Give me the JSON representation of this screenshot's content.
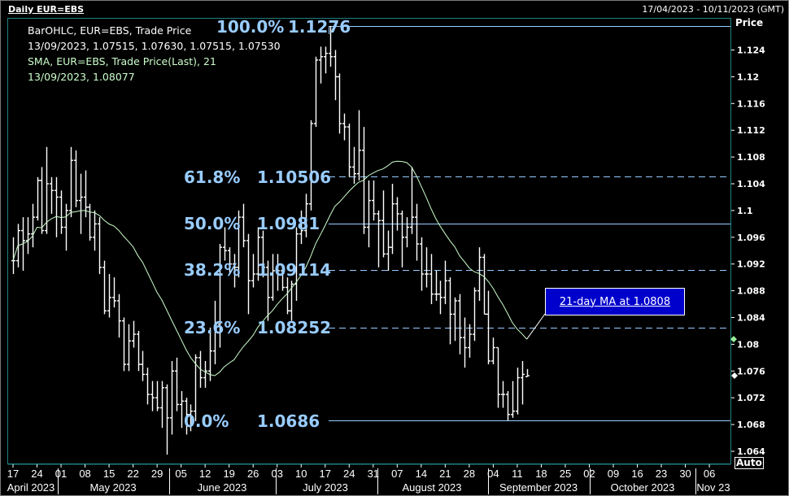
{
  "header": {
    "title": "Daily EUR=EBS",
    "date_range": "17/04/2023 - 10/11/2023 (GMT)"
  },
  "legend": {
    "line1": "BarOHLC, EUR=EBS, Trade Price",
    "line2": "13/09/2023, 1.07515, 1.07630, 1.07515, 1.07530",
    "line3": "SMA, EUR=EBS, Trade Price(Last),  21",
    "line4": "13/09/2023, 1.08077"
  },
  "axis": {
    "price_label": "Price",
    "auto_button": "Auto"
  },
  "callout": {
    "text": "21-day MA at 1.0808"
  },
  "colors": {
    "background": "#000000",
    "bars": "#ffffff",
    "sma": "#ccffcc",
    "fib": "#99ccff",
    "plot_border": "#1e8080",
    "callout": "#0000cc",
    "sma_marker": "#99ee99"
  },
  "chart_data": {
    "type": "ohlc",
    "title": "Daily EUR=EBS",
    "ylabel": "Price",
    "ylim": [
      1.062,
      1.129
    ],
    "grid": false,
    "sma_period": 21,
    "sma_last": 1.08077,
    "y_ticks": [
      "1.064",
      "1.068",
      "1.072",
      "1.076",
      "1.08",
      "1.084",
      "1.088",
      "1.092",
      "1.096",
      "1.1",
      "1.104",
      "1.108",
      "1.112",
      "1.116",
      "1.12",
      "1.124"
    ],
    "x_ticks": [
      "17",
      "24",
      "01",
      "08",
      "15",
      "22",
      "29",
      "05",
      "12",
      "19",
      "26",
      "03",
      "10",
      "17",
      "24",
      "31",
      "07",
      "14",
      "21",
      "28",
      "04",
      "11",
      "18",
      "25",
      "02",
      "09",
      "16",
      "23",
      "30",
      "06"
    ],
    "x_months": [
      "April 2023",
      "May 2023",
      "June 2023",
      "July 2023",
      "August 2023",
      "September 2023",
      "October 2023",
      "Nov 23"
    ],
    "fib_levels": [
      {
        "pct": "100.0%",
        "value": "1.1276",
        "price": 1.1276,
        "style": "solid"
      },
      {
        "pct": "61.8%",
        "value": "1.10506",
        "price": 1.10506,
        "style": "dashed"
      },
      {
        "pct": "50.0%",
        "value": "1.0981",
        "price": 1.0981,
        "style": "solid"
      },
      {
        "pct": "38.2%",
        "value": "1.09114",
        "price": 1.09114,
        "style": "dashed"
      },
      {
        "pct": "23.6%",
        "value": "1.08252",
        "price": 1.08252,
        "style": "dashed"
      },
      {
        "pct": "0.0%",
        "value": "1.0686",
        "price": 1.0686,
        "style": "solid"
      }
    ],
    "dates": [
      "2023-04-17",
      "2023-04-18",
      "2023-04-19",
      "2023-04-20",
      "2023-04-21",
      "2023-04-24",
      "2023-04-25",
      "2023-04-26",
      "2023-04-27",
      "2023-04-28",
      "2023-05-01",
      "2023-05-02",
      "2023-05-03",
      "2023-05-04",
      "2023-05-05",
      "2023-05-08",
      "2023-05-09",
      "2023-05-10",
      "2023-05-11",
      "2023-05-12",
      "2023-05-15",
      "2023-05-16",
      "2023-05-17",
      "2023-05-18",
      "2023-05-19",
      "2023-05-22",
      "2023-05-23",
      "2023-05-24",
      "2023-05-25",
      "2023-05-26",
      "2023-05-29",
      "2023-05-30",
      "2023-05-31",
      "2023-06-01",
      "2023-06-02",
      "2023-06-05",
      "2023-06-06",
      "2023-06-07",
      "2023-06-08",
      "2023-06-09",
      "2023-06-12",
      "2023-06-13",
      "2023-06-14",
      "2023-06-15",
      "2023-06-16",
      "2023-06-19",
      "2023-06-20",
      "2023-06-21",
      "2023-06-22",
      "2023-06-23",
      "2023-06-26",
      "2023-06-27",
      "2023-06-28",
      "2023-06-29",
      "2023-06-30",
      "2023-07-03",
      "2023-07-04",
      "2023-07-05",
      "2023-07-06",
      "2023-07-07",
      "2023-07-10",
      "2023-07-11",
      "2023-07-12",
      "2023-07-13",
      "2023-07-14",
      "2023-07-17",
      "2023-07-18",
      "2023-07-19",
      "2023-07-20",
      "2023-07-21",
      "2023-07-24",
      "2023-07-25",
      "2023-07-26",
      "2023-07-27",
      "2023-07-28",
      "2023-07-31",
      "2023-08-01",
      "2023-08-02",
      "2023-08-03",
      "2023-08-04",
      "2023-08-07",
      "2023-08-08",
      "2023-08-09",
      "2023-08-10",
      "2023-08-11",
      "2023-08-14",
      "2023-08-15",
      "2023-08-16",
      "2023-08-17",
      "2023-08-18",
      "2023-08-21",
      "2023-08-22",
      "2023-08-23",
      "2023-08-24",
      "2023-08-25",
      "2023-08-28",
      "2023-08-29",
      "2023-08-30",
      "2023-08-31",
      "2023-09-01",
      "2023-09-04",
      "2023-09-05",
      "2023-09-06",
      "2023-09-07",
      "2023-09-08",
      "2023-09-11",
      "2023-09-12",
      "2023-09-13"
    ],
    "ohlc": [
      [
        1.0925,
        1.096,
        1.0905,
        1.0925
      ],
      [
        1.0925,
        1.098,
        1.0915,
        1.097
      ],
      [
        1.097,
        1.099,
        1.091,
        1.0955
      ],
      [
        1.0955,
        1.099,
        1.0935,
        1.0965
      ],
      [
        1.0965,
        1.101,
        1.0945,
        1.099
      ],
      [
        1.099,
        1.105,
        1.0985,
        1.1045
      ],
      [
        1.1045,
        1.1065,
        1.0965,
        1.097
      ],
      [
        1.097,
        1.1095,
        1.0965,
        1.104
      ],
      [
        1.104,
        1.105,
        1.0995,
        1.103
      ],
      [
        1.103,
        1.105,
        1.096,
        1.102
      ],
      [
        1.102,
        1.103,
        1.0965,
        1.0975
      ],
      [
        1.0975,
        1.101,
        1.094,
        1.1
      ],
      [
        1.1,
        1.1095,
        1.099,
        1.1075
      ],
      [
        1.1075,
        1.109,
        1.1005,
        1.1015
      ],
      [
        1.1015,
        1.1055,
        1.0965,
        1.102
      ],
      [
        1.102,
        1.106,
        1.099,
        1.1005
      ],
      [
        1.1005,
        1.101,
        1.0955,
        1.096
      ],
      [
        1.096,
        1.1,
        1.094,
        1.098
      ],
      [
        1.098,
        1.099,
        1.0905,
        1.0915
      ],
      [
        1.0915,
        1.0925,
        1.0845,
        1.085
      ],
      [
        1.085,
        1.0905,
        1.084,
        1.087
      ],
      [
        1.087,
        1.09,
        1.0855,
        1.0865
      ],
      [
        1.0865,
        1.0875,
        1.081,
        1.0835
      ],
      [
        1.0835,
        1.084,
        1.076,
        1.077
      ],
      [
        1.077,
        1.083,
        1.076,
        1.0805
      ],
      [
        1.0805,
        1.0835,
        1.0795,
        1.0815
      ],
      [
        1.0815,
        1.082,
        1.076,
        1.077
      ],
      [
        1.077,
        1.079,
        1.0745,
        1.0755
      ],
      [
        1.0755,
        1.0765,
        1.071,
        1.0725
      ],
      [
        1.0725,
        1.0745,
        1.07,
        1.072
      ],
      [
        1.072,
        1.0745,
        1.07,
        1.0705
      ],
      [
        1.0705,
        1.0745,
        1.0675,
        1.0735
      ],
      [
        1.0735,
        1.074,
        1.0635,
        1.069
      ],
      [
        1.069,
        1.0775,
        1.0665,
        1.076
      ],
      [
        1.076,
        1.078,
        1.07,
        1.071
      ],
      [
        1.071,
        1.073,
        1.0675,
        1.0715
      ],
      [
        1.0715,
        1.072,
        1.0665,
        1.0695
      ],
      [
        1.0695,
        1.071,
        1.067,
        1.07
      ],
      [
        1.07,
        1.0785,
        1.0685,
        1.078
      ],
      [
        1.078,
        1.079,
        1.0735,
        1.075
      ],
      [
        1.075,
        1.0775,
        1.0735,
        1.076
      ],
      [
        1.076,
        1.0825,
        1.0745,
        1.079
      ],
      [
        1.079,
        1.0865,
        1.077,
        1.083
      ],
      [
        1.083,
        1.095,
        1.0795,
        1.0945
      ],
      [
        1.0945,
        1.0975,
        1.0925,
        1.094
      ],
      [
        1.094,
        1.0945,
        1.0905,
        1.092
      ],
      [
        1.092,
        1.0935,
        1.0885,
        1.0915
      ],
      [
        1.0915,
        1.1,
        1.09,
        1.099
      ],
      [
        1.099,
        1.101,
        1.0945,
        1.0955
      ],
      [
        1.0955,
        1.0965,
        1.0845,
        1.0895
      ],
      [
        1.0895,
        1.0935,
        1.0885,
        1.0905
      ],
      [
        1.0905,
        1.0975,
        1.0895,
        1.096
      ],
      [
        1.096,
        1.097,
        1.09,
        1.0915
      ],
      [
        1.0915,
        1.0925,
        1.0835,
        1.087
      ],
      [
        1.087,
        1.0935,
        1.0865,
        1.091
      ],
      [
        1.091,
        1.0935,
        1.088,
        1.091
      ],
      [
        1.091,
        1.092,
        1.088,
        1.0885
      ],
      [
        1.0885,
        1.09,
        1.0845,
        1.085
      ],
      [
        1.085,
        1.0895,
        1.0835,
        1.089
      ],
      [
        1.089,
        1.0975,
        1.0865,
        1.0965
      ],
      [
        1.0965,
        1.1,
        1.095,
        1.097
      ],
      [
        1.097,
        1.1025,
        1.096,
        1.101
      ],
      [
        1.101,
        1.1135,
        1.1,
        1.113
      ],
      [
        1.113,
        1.123,
        1.1125,
        1.1225
      ],
      [
        1.1225,
        1.1245,
        1.119,
        1.123
      ],
      [
        1.123,
        1.1245,
        1.1205,
        1.1235
      ],
      [
        1.1235,
        1.1276,
        1.1215,
        1.123
      ],
      [
        1.123,
        1.124,
        1.1165,
        1.12
      ],
      [
        1.12,
        1.1205,
        1.1115,
        1.113
      ],
      [
        1.113,
        1.1145,
        1.1105,
        1.1125
      ],
      [
        1.1125,
        1.113,
        1.105,
        1.1065
      ],
      [
        1.1065,
        1.1095,
        1.104,
        1.1055
      ],
      [
        1.1055,
        1.115,
        1.1045,
        1.109
      ],
      [
        1.109,
        1.1125,
        1.0965,
        1.0975
      ],
      [
        1.0975,
        1.1045,
        1.0945,
        1.1015
      ],
      [
        1.1015,
        1.1045,
        1.0985,
        1.0995
      ],
      [
        1.0995,
        1.1,
        1.0915,
        1.0985
      ],
      [
        1.0985,
        1.103,
        1.093,
        1.0935
      ],
      [
        1.0935,
        1.097,
        1.091,
        1.0945
      ],
      [
        1.0945,
        1.104,
        1.0935,
        1.101
      ],
      [
        1.101,
        1.102,
        1.097,
        1.0995
      ],
      [
        1.0995,
        1.1,
        1.0915,
        1.096
      ],
      [
        1.096,
        1.099,
        1.0945,
        1.0975
      ],
      [
        1.0975,
        1.1065,
        1.0965,
        1.099
      ],
      [
        1.099,
        1.101,
        1.0925,
        1.095
      ],
      [
        1.095,
        1.096,
        1.088,
        1.0905
      ],
      [
        1.0905,
        1.0945,
        1.0885,
        1.0905
      ],
      [
        1.0905,
        1.0935,
        1.086,
        1.0875
      ],
      [
        1.0875,
        1.091,
        1.0865,
        1.0875
      ],
      [
        1.0875,
        1.0895,
        1.0845,
        1.087
      ],
      [
        1.087,
        1.0925,
        1.086,
        1.0895
      ],
      [
        1.0895,
        1.09,
        1.08,
        1.0845
      ],
      [
        1.0845,
        1.087,
        1.0805,
        1.0865
      ],
      [
        1.0865,
        1.0875,
        1.0785,
        1.081
      ],
      [
        1.081,
        1.084,
        1.0765,
        1.0795
      ],
      [
        1.0795,
        1.083,
        1.078,
        1.0815
      ],
      [
        1.0815,
        1.0885,
        1.0805,
        1.088
      ],
      [
        1.088,
        1.0945,
        1.0865,
        1.093
      ],
      [
        1.093,
        1.0935,
        1.0845,
        1.0845
      ],
      [
        1.0845,
        1.088,
        1.077,
        1.0775
      ],
      [
        1.0775,
        1.081,
        1.077,
        1.0795
      ],
      [
        1.0795,
        1.0795,
        1.0705,
        1.0725
      ],
      [
        1.0725,
        1.0745,
        1.0705,
        1.0725
      ],
      [
        1.0725,
        1.073,
        1.0686,
        1.0695
      ],
      [
        1.0695,
        1.0745,
        1.069,
        1.07
      ],
      [
        1.07,
        1.0765,
        1.0695,
        1.075
      ],
      [
        1.075,
        1.0775,
        1.071,
        1.0755
      ],
      [
        1.07515,
        1.0763,
        1.07515,
        1.0753
      ]
    ]
  }
}
